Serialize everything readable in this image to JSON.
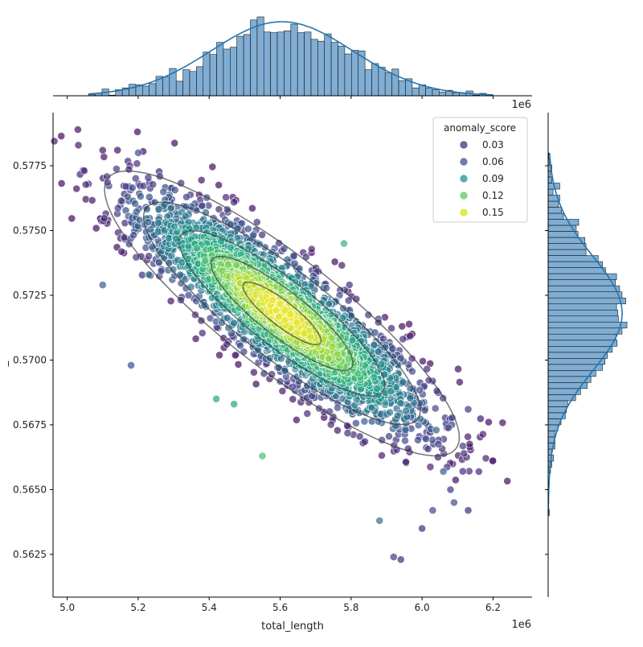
{
  "chart_data": {
    "type": "scatter",
    "subtype": "jointplot",
    "title": "",
    "xlabel": "total_length",
    "ylabel": "_",
    "x_offset_label": "1e6",
    "y_offset_label": "",
    "xlim": [
      4.96,
      6.31
    ],
    "ylim": [
      0.56085,
      0.57955
    ],
    "x_ticks": [
      "5.0",
      "5.2",
      "5.4",
      "5.6",
      "5.8",
      "6.0",
      "6.2"
    ],
    "y_ticks": [
      "0.5625",
      "0.5650",
      "0.5675",
      "0.5700",
      "0.5725",
      "0.5750",
      "0.5775"
    ],
    "marginal_x_offset_label": "1e6",
    "legend": {
      "title": "anomaly_score",
      "placement": "top-right",
      "entries": [
        {
          "label": "0.03",
          "color": "#472d7b"
        },
        {
          "label": "0.06",
          "color": "#3b528b"
        },
        {
          "label": "0.09",
          "color": "#21918c"
        },
        {
          "label": "0.12",
          "color": "#5ec962"
        },
        {
          "label": "0.15",
          "color": "#d8e219"
        }
      ]
    },
    "colormap": "viridis",
    "color_range": [
      0.0,
      0.17
    ],
    "hist_color": "#6a9fcb",
    "kde_color": "#1f77b4",
    "contour_color": "#3a3a3a",
    "distribution": {
      "center_x": 5.605,
      "center_y": 0.5718,
      "std_x": 0.2,
      "std_y": 0.0022,
      "correlation": -0.87,
      "n_points": 3000
    },
    "outlier_points": [
      {
        "x": 5.1,
        "y": 0.5781,
        "score": 0.01
      },
      {
        "x": 5.2,
        "y": 0.578,
        "score": 0.04
      },
      {
        "x": 5.06,
        "y": 0.5768,
        "score": 0.02
      },
      {
        "x": 5.1,
        "y": 0.5729,
        "score": 0.05
      },
      {
        "x": 5.15,
        "y": 0.5747,
        "score": 0.02
      },
      {
        "x": 5.23,
        "y": 0.5733,
        "score": 0.07
      },
      {
        "x": 5.18,
        "y": 0.5698,
        "score": 0.04
      },
      {
        "x": 5.42,
        "y": 0.5685,
        "score": 0.1
      },
      {
        "x": 5.47,
        "y": 0.5683,
        "score": 0.1
      },
      {
        "x": 5.92,
        "y": 0.5624,
        "score": 0.03
      },
      {
        "x": 5.94,
        "y": 0.5623,
        "score": 0.02
      },
      {
        "x": 5.88,
        "y": 0.5638,
        "score": 0.06
      },
      {
        "x": 6.0,
        "y": 0.5635,
        "score": 0.02
      },
      {
        "x": 6.13,
        "y": 0.5642,
        "score": 0.02
      },
      {
        "x": 6.2,
        "y": 0.5661,
        "score": 0.01
      },
      {
        "x": 6.13,
        "y": 0.5681,
        "score": 0.03
      },
      {
        "x": 6.08,
        "y": 0.565,
        "score": 0.03
      },
      {
        "x": 6.09,
        "y": 0.5645,
        "score": 0.04
      },
      {
        "x": 6.06,
        "y": 0.5657,
        "score": 0.05
      },
      {
        "x": 6.03,
        "y": 0.5642,
        "score": 0.04
      },
      {
        "x": 5.55,
        "y": 0.5663,
        "score": 0.12
      },
      {
        "x": 5.78,
        "y": 0.5745,
        "score": 0.11
      },
      {
        "x": 5.85,
        "y": 0.5702,
        "score": 0.08
      },
      {
        "x": 6.04,
        "y": 0.5673,
        "score": 0.05
      }
    ],
    "x_marginal": {
      "bin_edges": [
        5.06,
        6.2
      ],
      "bin_count": 60,
      "density_shape": "unimodal, peak near 5.6"
    },
    "y_marginal": {
      "bin_edges": [
        0.564,
        0.578
      ],
      "bin_count": 60,
      "density_shape": "unimodal, peak near 0.5717"
    }
  }
}
